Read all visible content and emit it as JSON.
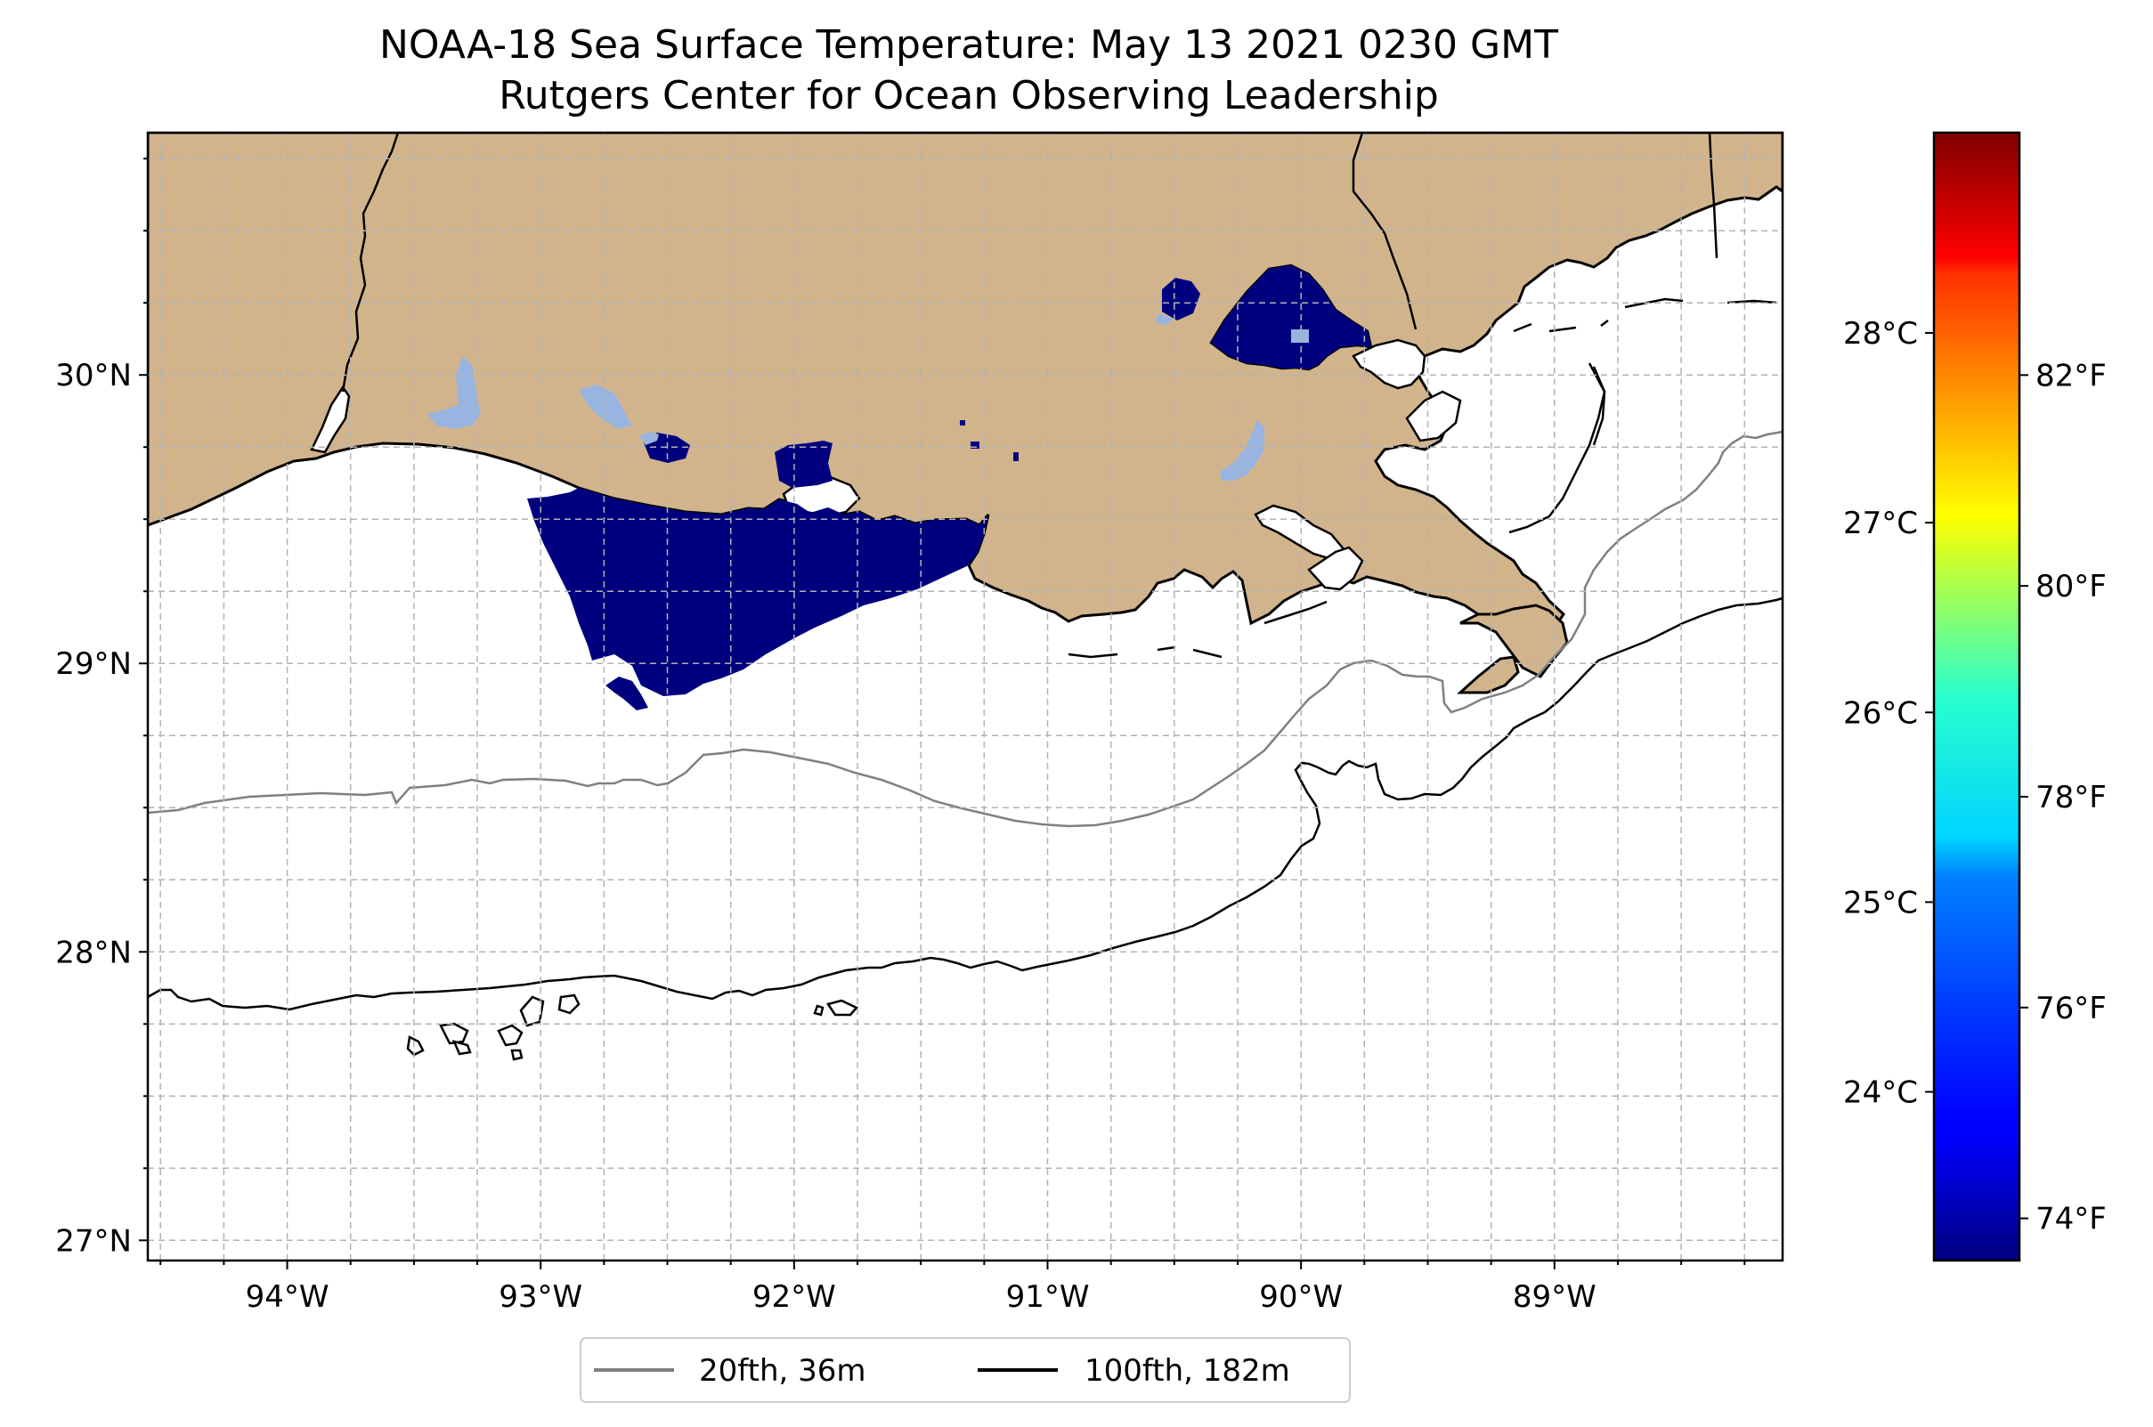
{
  "title": {
    "line1": "NOAA-18 Sea Surface Temperature: May 13 2021 0230 GMT",
    "line2": "Rutgers Center for Ocean Observing Leadership"
  },
  "map": {
    "extent": {
      "lon_min": -94.55,
      "lon_max": -88.1,
      "lat_min": 26.93,
      "lat_max": 30.84
    },
    "land_color": "#d2b48c",
    "sst_observed_color": "#00007f",
    "lat_ticks": [
      {
        "value": 27,
        "label": "27°N"
      },
      {
        "value": 28,
        "label": "28°N"
      },
      {
        "value": 29,
        "label": "29°N"
      },
      {
        "value": 30,
        "label": "30°N"
      }
    ],
    "lon_ticks": [
      {
        "value": -94,
        "label": "94°W"
      },
      {
        "value": -93,
        "label": "93°W"
      },
      {
        "value": -92,
        "label": "92°W"
      },
      {
        "value": -91,
        "label": "91°W"
      },
      {
        "value": -90,
        "label": "90°W"
      },
      {
        "value": -89,
        "label": "89°W"
      }
    ],
    "grid": true,
    "grid_style": "dashed",
    "grid_step_deg": 0.25
  },
  "colorbar": {
    "colormap": "jet",
    "range_f": [
      73.6,
      84.3
    ],
    "celsius_ticks": [
      {
        "value": 24,
        "label": "24°C"
      },
      {
        "value": 25,
        "label": "25°C"
      },
      {
        "value": 26,
        "label": "26°C"
      },
      {
        "value": 27,
        "label": "27°C"
      },
      {
        "value": 28,
        "label": "28°C"
      }
    ],
    "fahrenheit_ticks": [
      {
        "value": 74,
        "label": "74°F"
      },
      {
        "value": 76,
        "label": "76°F"
      },
      {
        "value": 78,
        "label": "78°F"
      },
      {
        "value": 80,
        "label": "80°F"
      },
      {
        "value": 82,
        "label": "82°F"
      }
    ]
  },
  "legend": {
    "placement": "bottom-center",
    "items": [
      {
        "label": "20fth, 36m",
        "color": "#808080"
      },
      {
        "label": "100fth, 182m",
        "color": "#000000"
      }
    ]
  }
}
